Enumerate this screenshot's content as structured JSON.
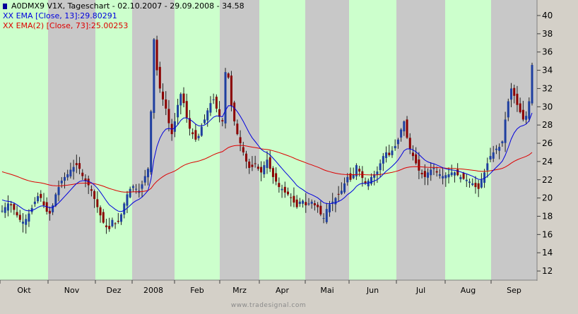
{
  "chart_data": {
    "type": "candlestick",
    "legend": {
      "main": "A0DMX9  V1X, Tageschart - 02.10.2007 - 29.09.2008 - 34.58",
      "ema13": "XX EMA [Close, 13]:29.80291",
      "ema73": "XX EMA(2) [Close, 73]:25.00253"
    },
    "months": [
      "Okt",
      "Nov",
      "Dez",
      "2008",
      "Feb",
      "Mrz",
      "Apr",
      "Mai",
      "Jun",
      "Jul",
      "Aug",
      "Sep"
    ],
    "yticks": [
      12,
      14,
      16,
      18,
      20,
      22,
      24,
      26,
      28,
      30,
      32,
      34,
      36,
      38,
      40
    ],
    "ylim": [
      11,
      41.7
    ],
    "grid": false,
    "legend_position": "top-left",
    "colors": {
      "band_even": "#ccffcc",
      "band_odd": "#c8c8c8",
      "candle_up": "#1f3fa0",
      "candle_down": "#8b0000",
      "ema13": "#0000dd",
      "ema73": "#dd0000",
      "main_symbol": "#000099"
    },
    "closes": [
      18.6,
      19.0,
      19.4,
      19.2,
      18.7,
      18.1,
      17.6,
      17.4,
      17.7,
      18.3,
      18.9,
      19.6,
      20.2,
      20.0,
      19.2,
      18.5,
      18.3,
      19.2,
      20.4,
      21.2,
      21.9,
      22.3,
      22.6,
      23.1,
      23.4,
      23.6,
      23.2,
      22.4,
      21.9,
      21.4,
      20.8,
      19.9,
      19.0,
      18.1,
      17.3,
      16.8,
      16.6,
      17.6,
      17.2,
      17.4,
      18.2,
      19.4,
      20.4,
      21.0,
      21.3,
      21.0,
      20.8,
      21.5,
      22.4,
      23.2,
      29.5,
      37.4,
      34.0,
      32.0,
      30.8,
      29.8,
      28.2,
      27.0,
      28.4,
      30.2,
      31.4,
      30.4,
      28.8,
      27.6,
      27.0,
      26.4,
      26.8,
      27.8,
      28.6,
      29.6,
      30.4,
      30.8,
      29.8,
      28.9,
      28.4,
      33.8,
      33.2,
      30.1,
      28.4,
      27.0,
      26.0,
      25.0,
      24.0,
      23.3,
      23.4,
      23.8,
      23.2,
      22.8,
      23.6,
      24.2,
      23.2,
      22.3,
      21.8,
      21.2,
      21.0,
      20.6,
      20.4,
      20.0,
      19.5,
      19.0,
      19.6,
      19.7,
      19.2,
      19.4,
      19.6,
      19.2,
      19.0,
      18.2,
      17.8,
      18.8,
      19.3,
      19.6,
      20.0,
      20.4,
      20.8,
      21.6,
      22.3,
      22.0,
      22.6,
      23.6,
      22.9,
      22.2,
      21.6,
      21.9,
      22.3,
      22.6,
      22.9,
      23.8,
      24.6,
      25.0,
      24.7,
      25.2,
      25.7,
      26.4,
      27.5,
      28.4,
      26.6,
      25.4,
      24.6,
      23.8,
      23.0,
      22.6,
      22.3,
      22.8,
      23.1,
      23.3,
      22.8,
      22.6,
      22.4,
      22.5,
      22.6,
      22.8,
      22.8,
      22.5,
      22.3,
      22.1,
      22.0,
      21.8,
      21.6,
      21.2,
      21.0,
      22.0,
      22.8,
      23.8,
      24.6,
      25.0,
      25.4,
      25.6,
      26.2,
      28.6,
      30.6,
      32.0,
      31.2,
      30.2,
      29.4,
      28.6,
      29.0,
      30.6,
      34.58
    ]
  }
}
